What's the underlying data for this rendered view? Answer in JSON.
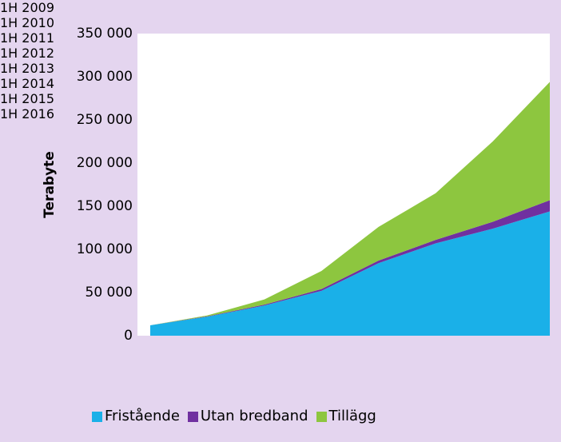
{
  "chart_data": {
    "type": "stacked_area",
    "y_label": "Terabyte",
    "categories": [
      "1H 2009",
      "1H 2010",
      "1H 2011",
      "1H 2012",
      "1H 2013",
      "1H 2014",
      "1H 2015",
      "1H 2016"
    ],
    "series": [
      {
        "name": "Fristående",
        "color": "#1ab0e8",
        "values": [
          12000,
          22000,
          35000,
          52000,
          84000,
          107000,
          124000,
          144000
        ]
      },
      {
        "name": "Utan bredband",
        "color": "#7030a0",
        "values": [
          0,
          500,
          1000,
          2000,
          3000,
          4000,
          8000,
          13000
        ]
      },
      {
        "name": "Tillägg",
        "color": "#8dc63f",
        "values": [
          0,
          1000,
          6000,
          21000,
          39000,
          54000,
          93000,
          137000
        ]
      }
    ],
    "ylim": [
      0,
      350000
    ],
    "yticks": [
      0,
      {
        "value": 50000,
        "label": "50 000"
      },
      {
        "value": 100000,
        "label": "100 000"
      },
      {
        "value": 150000,
        "label": "150 000"
      },
      {
        "value": 200000,
        "label": "200 000"
      },
      {
        "value": 250000,
        "label": "250 000"
      },
      {
        "value": 300000,
        "label": "300 000"
      },
      {
        "value": 350000,
        "label": "350 000"
      }
    ],
    "legend": "bottom"
  }
}
